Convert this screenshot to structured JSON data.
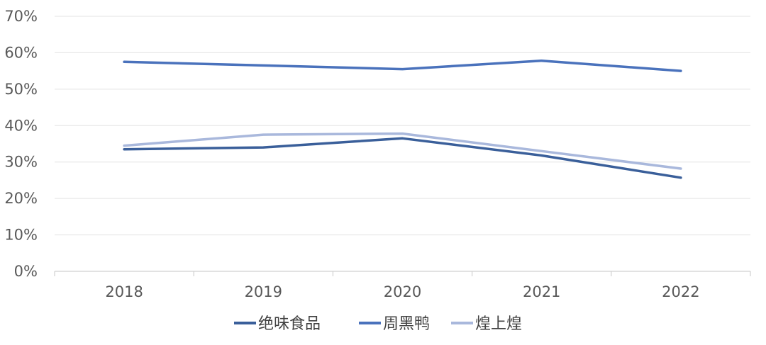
{
  "chart_data": {
    "type": "line",
    "categories": [
      "2018",
      "2019",
      "2020",
      "2021",
      "2022"
    ],
    "series": [
      {
        "name": "绝味食品",
        "color": "#3A5F9A",
        "values": [
          33.5,
          34.0,
          36.5,
          31.8,
          25.7
        ]
      },
      {
        "name": "周黑鸭",
        "color": "#4A72BC",
        "values": [
          57.5,
          56.5,
          55.5,
          57.8,
          55.0
        ]
      },
      {
        "name": "煌上煌",
        "color": "#A9B8DC",
        "values": [
          34.5,
          37.5,
          37.8,
          33.0,
          28.2
        ]
      }
    ],
    "ylim": [
      0,
      70
    ],
    "yticks": [
      "0%",
      "10%",
      "20%",
      "30%",
      "40%",
      "50%",
      "60%",
      "70%"
    ],
    "grid": true,
    "legend": "bottom"
  }
}
